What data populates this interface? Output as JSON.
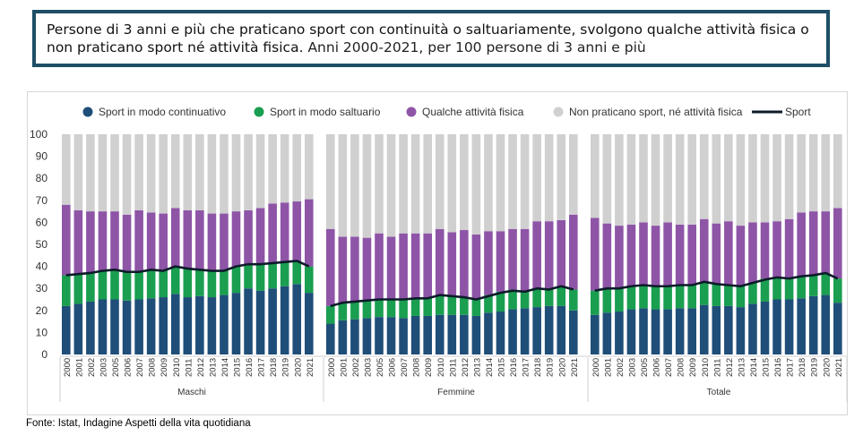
{
  "title": {
    "main": "Persone di 3 anni e più che praticano sport con continuità o saltuariamente, svolgono qualche attività fisica o non praticano sport né attività fisica.",
    "subtitle": "Anni 2000-2021, per 100 persone di 3 anni e più"
  },
  "source": "Fonte: Istat, Indagine Aspetti della vita quotidiana",
  "colors": {
    "continuativo": "#1f4e79",
    "saltuario": "#1a9e50",
    "qualche": "#8e55a7",
    "non_praticano": "#d0d0d0",
    "sport_line": "#0d1b2a"
  },
  "chart_data": {
    "type": "bar",
    "stacked": true,
    "ylim": [
      0,
      100
    ],
    "yticks": [
      0,
      10,
      20,
      30,
      40,
      50,
      60,
      70,
      80,
      90,
      100
    ],
    "legend": [
      "Sport in modo continuativo",
      "Sport in modo saltuario",
      "Qualche attività fisica",
      "Non praticano sport, né attività fisica",
      "Sport"
    ],
    "years": [
      "2000",
      "2001",
      "2002",
      "2003",
      "2005",
      "2006",
      "2007",
      "2008",
      "2009",
      "2010",
      "2011",
      "2012",
      "2013",
      "2014",
      "2015",
      "2016",
      "2017",
      "2018",
      "2019",
      "2020",
      "2021"
    ],
    "groups": [
      {
        "name": "Maschi",
        "continuativo": [
          22,
          23,
          24,
          25,
          25,
          24.5,
          25,
          25.5,
          26,
          27.5,
          26,
          26.5,
          26,
          27,
          28,
          30,
          29,
          30,
          31,
          32,
          28
        ],
        "saltuario": [
          14,
          13.5,
          13,
          13,
          13.5,
          13,
          12.5,
          13,
          12,
          12.5,
          13,
          12,
          12,
          11,
          12,
          11,
          12,
          11.5,
          11,
          10.5,
          12
        ],
        "qualche": [
          32,
          29,
          28,
          27,
          26.5,
          26,
          28,
          26,
          26,
          26.5,
          26.5,
          27,
          26,
          26,
          25,
          24.5,
          25.5,
          27,
          27,
          27,
          30.5
        ],
        "sport": [
          36,
          36.5,
          37,
          38,
          38.5,
          37.5,
          37.5,
          38.5,
          38,
          40,
          39,
          38.5,
          38,
          38,
          40,
          41,
          41,
          41.5,
          42,
          42.5,
          40
        ]
      },
      {
        "name": "Femmine",
        "continuativo": [
          14,
          15.5,
          16,
          16.5,
          17,
          17,
          16.5,
          17.5,
          17.5,
          18,
          18,
          18,
          17.5,
          19,
          19.5,
          20.5,
          21,
          21.5,
          22,
          22,
          20
        ],
        "saltuario": [
          8,
          8,
          8,
          8,
          8,
          8,
          8.5,
          8,
          8,
          9,
          8.5,
          8,
          7.5,
          8,
          9,
          9,
          8,
          8.5,
          8,
          9,
          9.5
        ],
        "qualche": [
          35,
          30,
          29.5,
          28.5,
          30,
          28.5,
          30,
          29.5,
          29.5,
          30,
          29,
          30.5,
          29.5,
          29,
          27.5,
          27.5,
          28,
          30.5,
          30.5,
          30,
          34
        ],
        "sport": [
          22,
          23.5,
          24,
          24.5,
          25,
          25,
          25,
          25.5,
          25.5,
          27,
          26.5,
          26,
          25,
          26.5,
          28,
          29,
          28.5,
          30,
          29.5,
          31,
          29.5
        ]
      },
      {
        "name": "Totale",
        "continuativo": [
          18,
          19,
          19.5,
          20.5,
          21,
          20.5,
          20.5,
          21,
          21,
          22.5,
          22,
          22,
          21.5,
          23,
          24,
          25,
          25,
          25.5,
          26.5,
          27,
          23.5
        ],
        "saltuario": [
          11,
          10.5,
          10.5,
          10.5,
          10.5,
          10.5,
          10.5,
          10.5,
          10.5,
          10.5,
          10,
          9.5,
          9.5,
          9.5,
          10.5,
          10,
          10,
          10,
          9.5,
          10,
          11
        ],
        "qualche": [
          33,
          30,
          28.5,
          28,
          28.5,
          27.5,
          29,
          27.5,
          27.5,
          28.5,
          27.5,
          29,
          27.5,
          27.5,
          25.5,
          25.5,
          26.5,
          29,
          29,
          28,
          32
        ],
        "sport": [
          29,
          30,
          30,
          31,
          31.5,
          31,
          31,
          31.5,
          31.5,
          33,
          32,
          31.5,
          31,
          32.5,
          34,
          35,
          34.5,
          35.5,
          36,
          37,
          34.5
        ]
      }
    ]
  }
}
